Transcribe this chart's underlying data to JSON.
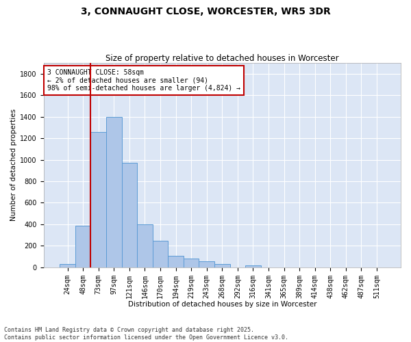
{
  "title": "3, CONNAUGHT CLOSE, WORCESTER, WR5 3DR",
  "subtitle": "Size of property relative to detached houses in Worcester",
  "xlabel": "Distribution of detached houses by size in Worcester",
  "ylabel": "Number of detached properties",
  "categories": [
    "24sqm",
    "48sqm",
    "73sqm",
    "97sqm",
    "121sqm",
    "146sqm",
    "170sqm",
    "194sqm",
    "219sqm",
    "243sqm",
    "268sqm",
    "292sqm",
    "316sqm",
    "341sqm",
    "365sqm",
    "389sqm",
    "414sqm",
    "438sqm",
    "462sqm",
    "487sqm",
    "511sqm"
  ],
  "values": [
    30,
    390,
    1260,
    1400,
    970,
    400,
    245,
    110,
    80,
    55,
    30,
    0,
    20,
    0,
    0,
    0,
    0,
    0,
    0,
    0,
    0
  ],
  "bar_color": "#aec6e8",
  "bar_edge_color": "#5b9bd5",
  "vline_color": "#c00000",
  "annotation_text": "3 CONNAUGHT CLOSE: 58sqm\n← 2% of detached houses are smaller (94)\n98% of semi-detached houses are larger (4,824) →",
  "annotation_box_color": "#ffffff",
  "annotation_box_edge_color": "#c00000",
  "ylim": [
    0,
    1900
  ],
  "yticks": [
    0,
    200,
    400,
    600,
    800,
    1000,
    1200,
    1400,
    1600,
    1800
  ],
  "footnote": "Contains HM Land Registry data © Crown copyright and database right 2025.\nContains public sector information licensed under the Open Government Licence v3.0.",
  "fig_bg_color": "#ffffff",
  "plot_bg_color": "#dce6f5",
  "grid_color": "#ffffff",
  "title_fontsize": 10,
  "subtitle_fontsize": 8.5,
  "axis_label_fontsize": 7.5,
  "tick_fontsize": 7,
  "annotation_fontsize": 7,
  "footnote_fontsize": 6
}
